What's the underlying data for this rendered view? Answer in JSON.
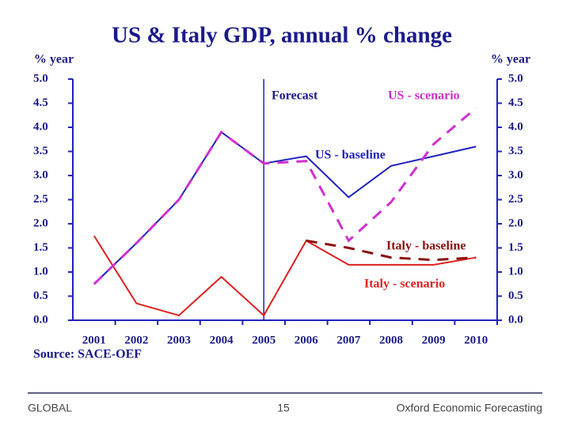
{
  "chart_data": {
    "type": "line",
    "title": "US & Italy GDP, annual % change",
    "y_label": "% year",
    "y2_label": "% year",
    "source": "Source: SACE-OEF",
    "categories": [
      "2001",
      "2002",
      "2003",
      "2004",
      "2005",
      "2006",
      "2007",
      "2008",
      "2009",
      "2010"
    ],
    "series": [
      {
        "name": "US - baseline",
        "color": "#2222c0",
        "dashed": false,
        "values": [
          0.75,
          1.6,
          2.5,
          3.9,
          3.25,
          3.4,
          2.55,
          3.2,
          3.4,
          3.6
        ]
      },
      {
        "name": "US - scenario",
        "color": "#d030d0",
        "dashed": true,
        "values": [
          0.75,
          1.6,
          2.5,
          3.9,
          3.25,
          3.3,
          1.65,
          2.45,
          3.65,
          4.4
        ]
      },
      {
        "name": "Italy - baseline",
        "color": "#8b1010",
        "dashed": true,
        "values": [
          null,
          null,
          null,
          null,
          null,
          1.65,
          1.5,
          1.3,
          1.25,
          1.3
        ]
      },
      {
        "name": "Italy - scenario",
        "color": "#e02020",
        "dashed": false,
        "values": [
          1.75,
          0.35,
          0.1,
          0.9,
          0.1,
          1.65,
          1.15,
          1.15,
          1.15,
          1.3
        ]
      }
    ],
    "forecast_label": "Forecast",
    "forecast_from": "2005",
    "ylim": [
      0,
      5
    ],
    "yticks": [
      {
        "value": 0,
        "label": "0.0"
      },
      {
        "value": 0.5,
        "label": "0.5"
      },
      {
        "value": 1,
        "label": "1.0"
      },
      {
        "value": 1.5,
        "label": "1.5"
      },
      {
        "value": 2,
        "label": "2.0"
      },
      {
        "value": 2.5,
        "label": "2.5"
      },
      {
        "value": 3,
        "label": "3.0"
      },
      {
        "value": 3.5,
        "label": "3.5"
      },
      {
        "value": 4,
        "label": "4.0"
      },
      {
        "value": 4.5,
        "label": "4.5"
      },
      {
        "value": 5,
        "label": "5.0"
      }
    ],
    "y2lim": [
      0,
      5
    ],
    "y2ticks": [
      {
        "value": 0,
        "label": "0.0"
      },
      {
        "value": 0.5,
        "label": "0.5"
      },
      {
        "value": 1,
        "label": "1.0"
      },
      {
        "value": 1.5,
        "label": "1.5"
      },
      {
        "value": 2,
        "label": "2.0"
      },
      {
        "value": 2.5,
        "label": "2.5"
      },
      {
        "value": 3,
        "label": "3.0"
      },
      {
        "value": 3.5,
        "label": "3.5"
      },
      {
        "value": 4,
        "label": "4.0"
      },
      {
        "value": 4.5,
        "label": "4.5"
      },
      {
        "value": 5,
        "label": "5.0"
      }
    ],
    "grid": false
  },
  "footer": {
    "left": "GLOBAL",
    "page": "15",
    "right": "Oxford Economic Forecasting"
  }
}
